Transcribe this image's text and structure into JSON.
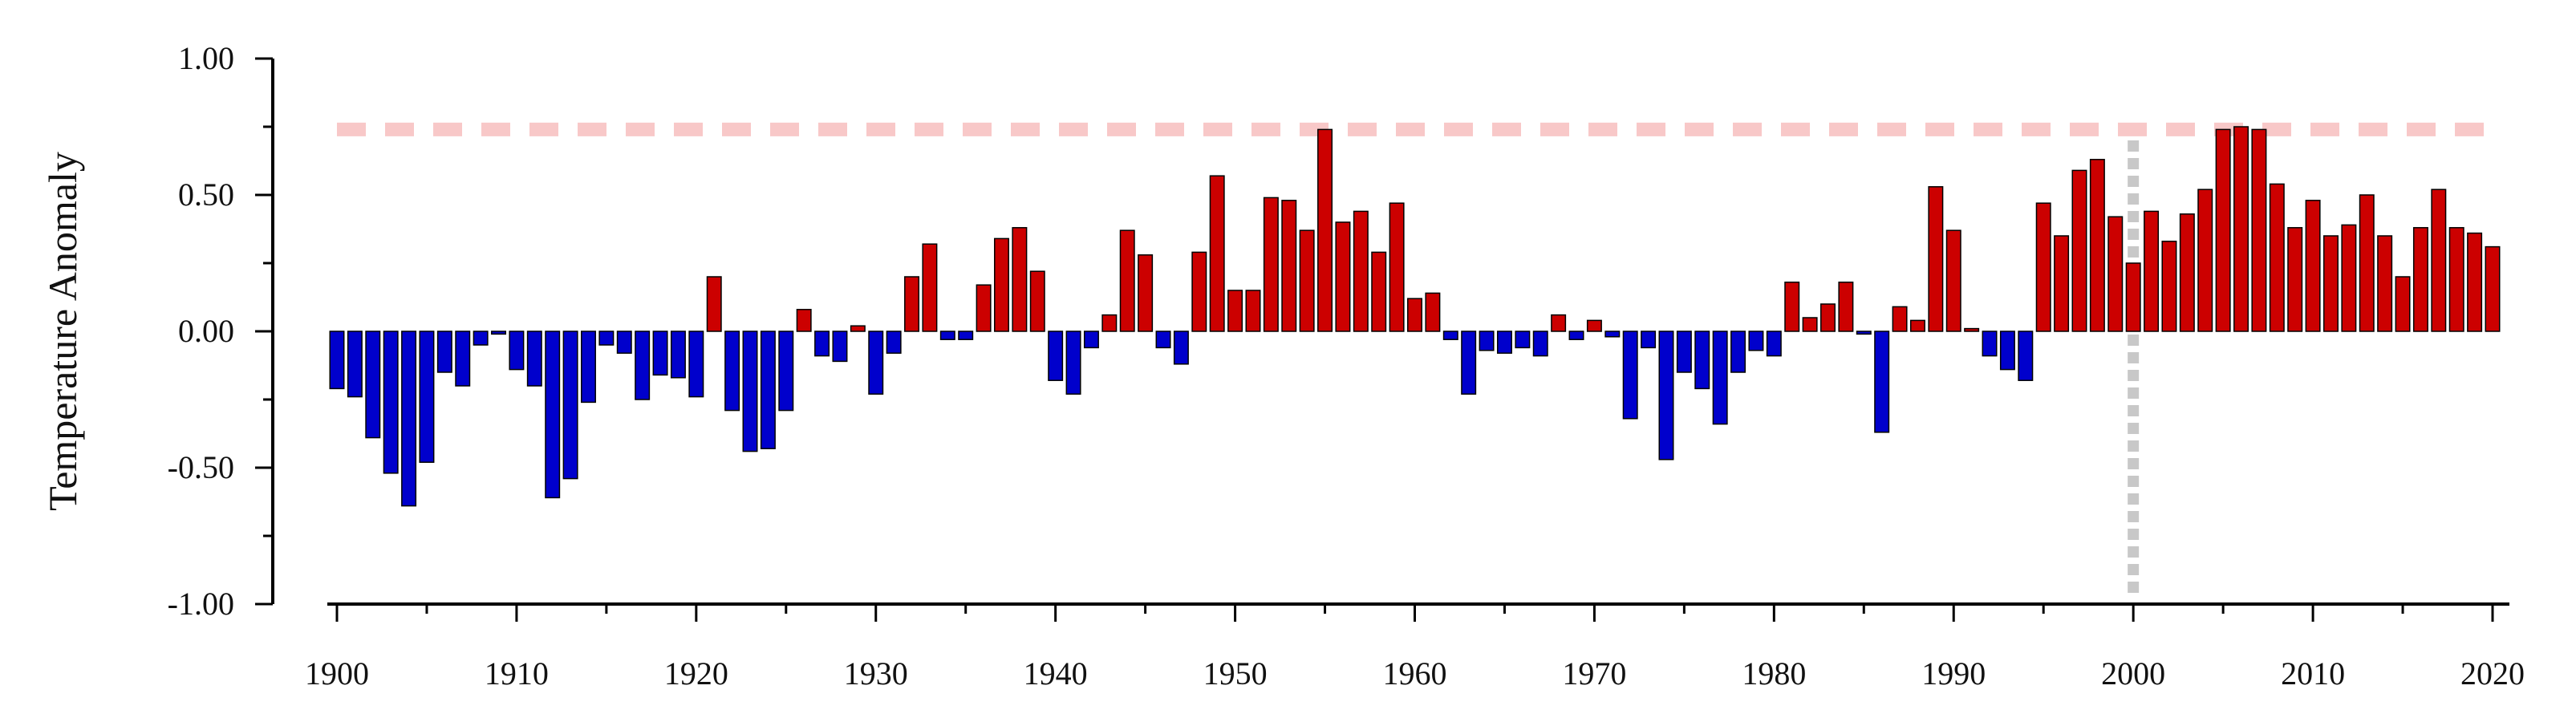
{
  "chart_data": {
    "type": "bar",
    "title": "",
    "xlabel": "",
    "ylabel": "Temperature Anomaly",
    "ylim": [
      -1.0,
      1.0
    ],
    "xlim": [
      1900,
      2020
    ],
    "y_tick_labels": [
      "1.00",
      "0.50",
      "0.00",
      "-0.50",
      "-1.00"
    ],
    "x_tick_labels": [
      "1900",
      "1910",
      "1920",
      "1930",
      "1940",
      "1950",
      "1960",
      "1970",
      "1980",
      "1990",
      "2000",
      "2010",
      "2020"
    ],
    "grid": false,
    "legend": "none",
    "colors": {
      "positive": "#cc0000",
      "negative": "#0000cc",
      "threshold_line": "#f8c8c8",
      "marker_line": "#c8c8c8"
    },
    "reference_lines": [
      {
        "orientation": "horizontal",
        "y": 0.74,
        "style": "dashed",
        "color": "#f8c8c8"
      },
      {
        "orientation": "vertical",
        "x": 2000,
        "style": "dotted",
        "color": "#c8c8c8"
      }
    ],
    "x": [
      1900,
      1901,
      1902,
      1903,
      1904,
      1905,
      1906,
      1907,
      1908,
      1909,
      1910,
      1911,
      1912,
      1913,
      1914,
      1915,
      1916,
      1917,
      1918,
      1919,
      1920,
      1921,
      1922,
      1923,
      1924,
      1925,
      1926,
      1927,
      1928,
      1929,
      1930,
      1931,
      1932,
      1933,
      1934,
      1935,
      1936,
      1937,
      1938,
      1939,
      1940,
      1941,
      1942,
      1943,
      1944,
      1945,
      1946,
      1947,
      1948,
      1949,
      1950,
      1951,
      1952,
      1953,
      1954,
      1955,
      1956,
      1957,
      1958,
      1959,
      1960,
      1961,
      1962,
      1963,
      1964,
      1965,
      1966,
      1967,
      1968,
      1969,
      1970,
      1971,
      1972,
      1973,
      1974,
      1975,
      1976,
      1977,
      1978,
      1979,
      1980,
      1981,
      1982,
      1983,
      1984,
      1985,
      1986,
      1987,
      1988,
      1989,
      1990,
      1991,
      1992,
      1993,
      1994,
      1995,
      1996,
      1997,
      1998,
      1999,
      2000,
      2001,
      2002,
      2003,
      2004,
      2005,
      2006,
      2007,
      2008,
      2009,
      2010,
      2011,
      2012,
      2013,
      2014,
      2015,
      2016,
      2017,
      2018,
      2019,
      2020
    ],
    "values": [
      -0.21,
      -0.24,
      -0.39,
      -0.52,
      -0.64,
      -0.48,
      -0.15,
      -0.2,
      -0.05,
      -0.01,
      -0.14,
      -0.2,
      -0.61,
      -0.54,
      -0.26,
      -0.05,
      -0.08,
      -0.25,
      -0.16,
      -0.17,
      -0.24,
      0.2,
      -0.29,
      -0.44,
      -0.43,
      -0.29,
      0.08,
      -0.09,
      -0.11,
      0.02,
      -0.23,
      -0.08,
      0.2,
      0.32,
      -0.03,
      -0.03,
      0.17,
      0.34,
      0.38,
      0.22,
      -0.18,
      -0.23,
      -0.06,
      0.06,
      0.37,
      0.28,
      -0.06,
      -0.12,
      0.29,
      0.57,
      0.15,
      0.15,
      0.49,
      0.48,
      0.37,
      0.74,
      0.4,
      0.44,
      0.29,
      0.47,
      0.12,
      0.14,
      -0.03,
      -0.23,
      -0.07,
      -0.08,
      -0.06,
      -0.09,
      0.06,
      -0.03,
      0.04,
      -0.02,
      -0.32,
      -0.06,
      -0.47,
      -0.15,
      -0.21,
      -0.34,
      -0.15,
      -0.07,
      -0.09,
      0.18,
      0.05,
      0.1,
      0.18,
      -0.01,
      -0.37,
      0.09,
      0.04,
      0.53,
      0.37,
      0.01,
      -0.09,
      -0.14,
      -0.18,
      0.47,
      0.35,
      0.59,
      0.63,
      0.42,
      0.25,
      0.44,
      0.33,
      0.43,
      0.52,
      0.74,
      0.75,
      0.74,
      0.54,
      0.38,
      0.48,
      0.35,
      0.39,
      0.5,
      0.35,
      0.2,
      0.38,
      0.52,
      0.38,
      0.36,
      0.31
    ]
  }
}
